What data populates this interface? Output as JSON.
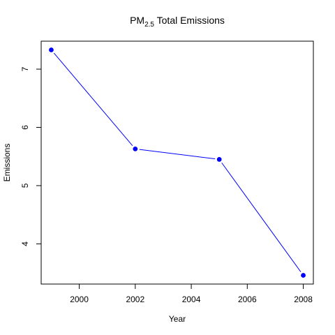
{
  "chart_data": {
    "type": "line",
    "title": "PM",
    "title_subscript": "2.5",
    "title_suffix": " Total Emissions",
    "xlabel": "Year",
    "ylabel": "Emissions",
    "x": [
      1999,
      2002,
      2005,
      2008
    ],
    "series": [
      {
        "values": [
          7.33,
          5.63,
          5.45,
          3.46
        ],
        "color": "#0000ff"
      }
    ],
    "xlim": [
      1998.64,
      2008.36
    ],
    "ylim": [
      3.31,
      7.48
    ],
    "xticks": [
      2000,
      2002,
      2004,
      2006,
      2008
    ],
    "yticks": [
      4,
      5,
      6,
      7
    ],
    "grid": false,
    "legend": "none"
  }
}
